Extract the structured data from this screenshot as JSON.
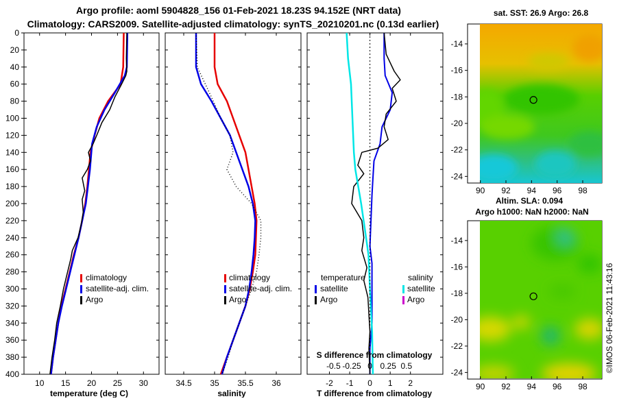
{
  "header": {
    "line1": "Argo profile: aoml 5904828_156 01-Feb-2021 18.23S 94.152E (NRT data)",
    "line2": "Climatology: CARS2009. Satellite-adjusted climatology: synTS_20210201.nc (0.13d earlier)"
  },
  "colors": {
    "climatology": "#e60000",
    "satellite": "#0000e6",
    "argo": "#000000",
    "sat_salinity": "#00e6e6",
    "argo_salinity": "#cc00cc"
  },
  "depth_ticks": [
    "0",
    "20",
    "40",
    "60",
    "80",
    "100",
    "120",
    "140",
    "160",
    "180",
    "200",
    "220",
    "240",
    "260",
    "280",
    "300",
    "320",
    "340",
    "360",
    "380",
    "400"
  ],
  "chart_data": [
    {
      "type": "line",
      "title": "",
      "xlabel": "temperature (deg C)",
      "ylabel": "",
      "xlim": [
        7,
        33
      ],
      "ylim": [
        400,
        0
      ],
      "xticks": [
        "10",
        "15",
        "20",
        "25",
        "30"
      ],
      "legend": {
        "climatology": "climatology",
        "satellite": "satellite-adj. clim.",
        "argo": "Argo"
      },
      "series": [
        {
          "name": "climatology",
          "points": [
            [
              26.2,
              0
            ],
            [
              26.1,
              40
            ],
            [
              25.6,
              60
            ],
            [
              23.2,
              80
            ],
            [
              21.5,
              100
            ],
            [
              20.6,
              120
            ],
            [
              19.8,
              140
            ],
            [
              19.5,
              160
            ],
            [
              19.2,
              180
            ],
            [
              18.8,
              200
            ],
            [
              18.2,
              220
            ],
            [
              17.5,
              240
            ],
            [
              16.6,
              260
            ],
            [
              15.8,
              280
            ],
            [
              15.0,
              300
            ],
            [
              14.2,
              320
            ],
            [
              13.6,
              340
            ],
            [
              13.1,
              360
            ],
            [
              12.6,
              380
            ],
            [
              12.2,
              400
            ]
          ]
        },
        {
          "name": "satellite-adj. clim.",
          "points": [
            [
              26.9,
              0
            ],
            [
              26.8,
              40
            ],
            [
              26.4,
              50
            ],
            [
              24.5,
              70
            ],
            [
              22.5,
              90
            ],
            [
              21.0,
              110
            ],
            [
              20.1,
              130
            ],
            [
              19.7,
              160
            ],
            [
              19.3,
              180
            ],
            [
              18.9,
              200
            ],
            [
              18.2,
              220
            ],
            [
              17.5,
              240
            ],
            [
              16.7,
              260
            ],
            [
              15.9,
              280
            ],
            [
              15.1,
              300
            ],
            [
              14.3,
              320
            ],
            [
              13.6,
              340
            ],
            [
              13.1,
              360
            ],
            [
              12.6,
              380
            ],
            [
              12.2,
              400
            ]
          ]
        },
        {
          "name": "Argo",
          "points": [
            [
              26.8,
              0
            ],
            [
              26.7,
              30
            ],
            [
              26.8,
              45
            ],
            [
              26.6,
              50
            ],
            [
              25.8,
              60
            ],
            [
              24.5,
              75
            ],
            [
              23.5,
              90
            ],
            [
              22.0,
              105
            ],
            [
              21.0,
              120
            ],
            [
              20.3,
              130
            ],
            [
              19.4,
              140
            ],
            [
              19.8,
              150
            ],
            [
              19.2,
              160
            ],
            [
              18.2,
              170
            ],
            [
              18.7,
              185
            ],
            [
              18.2,
              195
            ],
            [
              18.4,
              210
            ],
            [
              18.0,
              225
            ],
            [
              17.4,
              240
            ],
            [
              16.3,
              255
            ],
            [
              16.0,
              265
            ],
            [
              15.2,
              285
            ],
            [
              14.6,
              300
            ],
            [
              14.0,
              320
            ],
            [
              13.3,
              340
            ],
            [
              12.9,
              360
            ],
            [
              12.4,
              380
            ],
            [
              12.0,
              400
            ]
          ]
        }
      ]
    },
    {
      "type": "line",
      "title": "",
      "xlabel": "salinity",
      "ylabel": "",
      "xlim": [
        34.2,
        36.4
      ],
      "ylim": [
        400,
        0
      ],
      "xticks": [
        "34.5",
        "35",
        "35.5",
        "36"
      ],
      "legend": {
        "climatology": "climatology",
        "satellite": "satellite-adj. clim.",
        "argo": "Argo"
      },
      "series": [
        {
          "name": "climatology",
          "points": [
            [
              35.0,
              0
            ],
            [
              35.0,
              40
            ],
            [
              35.05,
              60
            ],
            [
              35.2,
              80
            ],
            [
              35.3,
              100
            ],
            [
              35.4,
              120
            ],
            [
              35.5,
              140
            ],
            [
              35.55,
              160
            ],
            [
              35.6,
              180
            ],
            [
              35.65,
              200
            ],
            [
              35.68,
              220
            ],
            [
              35.67,
              240
            ],
            [
              35.66,
              260
            ],
            [
              35.62,
              280
            ],
            [
              35.57,
              300
            ],
            [
              35.5,
              320
            ],
            [
              35.4,
              340
            ],
            [
              35.3,
              360
            ],
            [
              35.2,
              380
            ],
            [
              35.1,
              400
            ]
          ]
        },
        {
          "name": "satellite-adj. clim.",
          "points": [
            [
              34.7,
              0
            ],
            [
              34.7,
              40
            ],
            [
              34.78,
              60
            ],
            [
              34.95,
              80
            ],
            [
              35.1,
              100
            ],
            [
              35.25,
              120
            ],
            [
              35.35,
              140
            ],
            [
              35.45,
              160
            ],
            [
              35.55,
              180
            ],
            [
              35.62,
              200
            ],
            [
              35.66,
              220
            ],
            [
              35.65,
              240
            ],
            [
              35.63,
              260
            ],
            [
              35.6,
              280
            ],
            [
              35.56,
              300
            ],
            [
              35.5,
              320
            ],
            [
              35.4,
              340
            ],
            [
              35.3,
              360
            ],
            [
              35.2,
              380
            ],
            [
              35.12,
              400
            ]
          ]
        },
        {
          "name": "Argo",
          "points": [
            [
              34.7,
              0
            ],
            [
              34.72,
              40
            ],
            [
              34.85,
              60
            ],
            [
              34.98,
              80
            ],
            [
              35.1,
              100
            ],
            [
              35.25,
              120
            ],
            [
              35.3,
              140
            ],
            [
              35.2,
              160
            ],
            [
              35.35,
              180
            ],
            [
              35.6,
              200
            ],
            [
              35.75,
              220
            ],
            [
              35.75,
              240
            ],
            [
              35.72,
              260
            ],
            [
              35.68,
              280
            ],
            [
              35.6,
              300
            ],
            [
              35.5,
              320
            ],
            [
              35.4,
              340
            ],
            [
              35.3,
              360
            ],
            [
              35.22,
              380
            ],
            [
              35.12,
              400
            ]
          ]
        }
      ]
    },
    {
      "type": "line",
      "title": "",
      "xlabel": "T difference from climatology",
      "xlabel2": "S difference from climatology",
      "xlim": [
        -3.1,
        3.6
      ],
      "ylim": [
        400,
        0
      ],
      "xticks": [
        "-2",
        "-1",
        "0",
        "1",
        "2"
      ],
      "xticks_top": [
        "-0.5",
        "-0.25",
        "0",
        "0.25",
        "0.5"
      ],
      "legend": {
        "temperature": "temperature",
        "salinity": "salinity",
        "satellite_t": "satellite",
        "argo_t": "Argo",
        "satellite_s": "satellite",
        "argo_s": "Argo"
      },
      "series": [
        {
          "name": "T satellite",
          "points": [
            [
              0.7,
              0
            ],
            [
              0.7,
              30
            ],
            [
              0.75,
              50
            ],
            [
              1.1,
              70
            ],
            [
              1.0,
              90
            ],
            [
              0.6,
              110
            ],
            [
              0.5,
              130
            ],
            [
              0.2,
              150
            ],
            [
              0.15,
              170
            ],
            [
              0.1,
              190
            ],
            [
              0.05,
              220
            ],
            [
              0.0,
              250
            ],
            [
              0.1,
              270
            ],
            [
              0.1,
              300
            ],
            [
              0.1,
              340
            ],
            [
              0.0,
              370
            ],
            [
              0.0,
              400
            ]
          ]
        },
        {
          "name": "T Argo",
          "points": [
            [
              0.7,
              0
            ],
            [
              0.8,
              25
            ],
            [
              1.0,
              35
            ],
            [
              1.2,
              45
            ],
            [
              1.5,
              55
            ],
            [
              1.1,
              65
            ],
            [
              1.3,
              80
            ],
            [
              0.8,
              95
            ],
            [
              0.7,
              110
            ],
            [
              0.9,
              125
            ],
            [
              0.4,
              135
            ],
            [
              -0.4,
              140
            ],
            [
              -0.6,
              155
            ],
            [
              -0.3,
              165
            ],
            [
              -0.8,
              180
            ],
            [
              -0.9,
              200
            ],
            [
              -0.4,
              220
            ],
            [
              -0.3,
              240
            ],
            [
              -0.4,
              255
            ],
            [
              -0.15,
              275
            ],
            [
              -0.3,
              290
            ],
            [
              -0.1,
              310
            ],
            [
              -0.05,
              330
            ],
            [
              0.0,
              350
            ],
            [
              -0.05,
              370
            ],
            [
              0.0,
              400
            ]
          ]
        },
        {
          "name": "S satellite",
          "points": [
            [
              -0.32,
              0
            ],
            [
              -0.3,
              30
            ],
            [
              -0.26,
              60
            ],
            [
              -0.24,
              100
            ],
            [
              -0.22,
              140
            ],
            [
              -0.2,
              160
            ],
            [
              -0.12,
              200
            ],
            [
              -0.07,
              230
            ],
            [
              -0.02,
              260
            ],
            [
              0.0,
              300
            ],
            [
              0.03,
              350
            ],
            [
              0.04,
              400
            ]
          ]
        }
      ]
    },
    {
      "type": "heatmap",
      "title": "sat. SST: 26.9 Argo: 26.8",
      "xticks": [
        "90",
        "92",
        "94",
        "96",
        "98"
      ],
      "yticks": [
        "-14",
        "-16",
        "-18",
        "-20",
        "-22",
        "-24"
      ],
      "xlim": [
        89,
        99.5
      ],
      "ylim": [
        -24.5,
        -12.5
      ],
      "marker": {
        "lon": 94.15,
        "lat": -18.23
      }
    },
    {
      "type": "heatmap",
      "title": "Altim. SLA: 0.094",
      "subtitle": "Argo h1000: NaN h2000: NaN",
      "xticks": [
        "90",
        "92",
        "94",
        "96",
        "98"
      ],
      "yticks": [
        "-14",
        "-16",
        "-18",
        "-20",
        "-22",
        "-24"
      ],
      "xlim": [
        89,
        99.5
      ],
      "ylim": [
        -24.5,
        -12.5
      ],
      "marker": {
        "lon": 94.15,
        "lat": -18.23
      }
    }
  ],
  "credit": "©IMOS 06-Feb-2021 11:43:16"
}
